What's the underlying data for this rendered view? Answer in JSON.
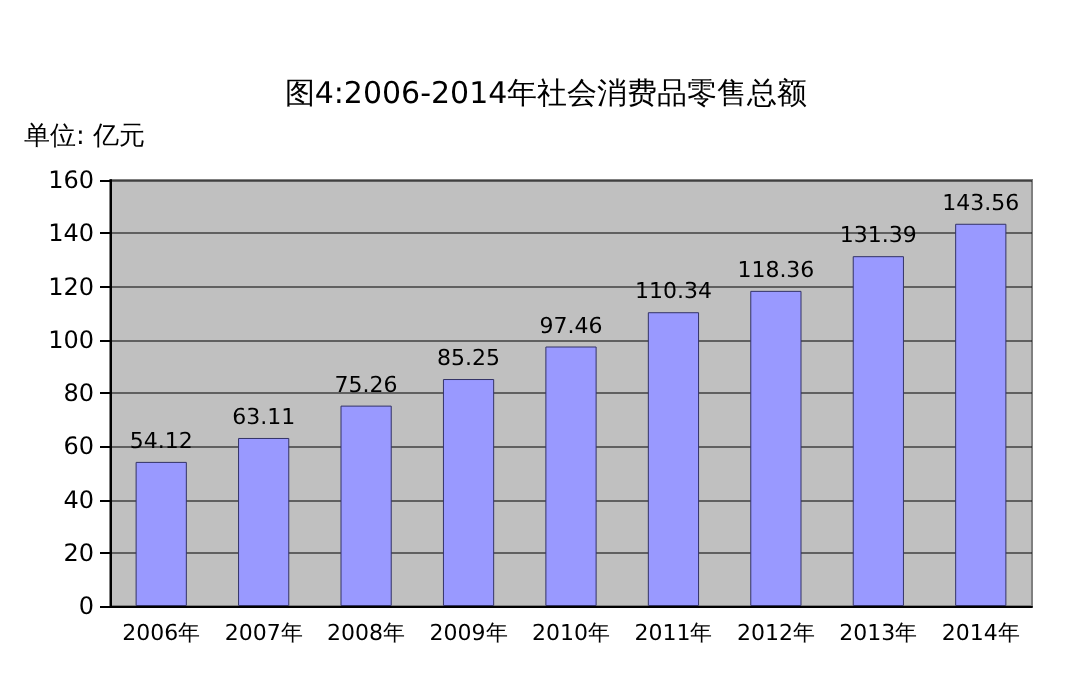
{
  "chart_data": {
    "type": "bar",
    "title": "图4:2006-2014年社会消费品零售总额",
    "ylabel": "单位: 亿元",
    "categories": [
      "2006年",
      "2007年",
      "2008年",
      "2009年",
      "2010年",
      "2011年",
      "2012年",
      "2013年",
      "2014年"
    ],
    "values": [
      54.12,
      63.11,
      75.26,
      85.25,
      97.46,
      110.34,
      118.36,
      131.39,
      143.56
    ],
    "color": "#9999ff",
    "ylim": [
      0,
      160
    ],
    "yticks": [
      0,
      20,
      40,
      60,
      80,
      100,
      120,
      140,
      160
    ],
    "grid": "y",
    "data_labels": true
  }
}
